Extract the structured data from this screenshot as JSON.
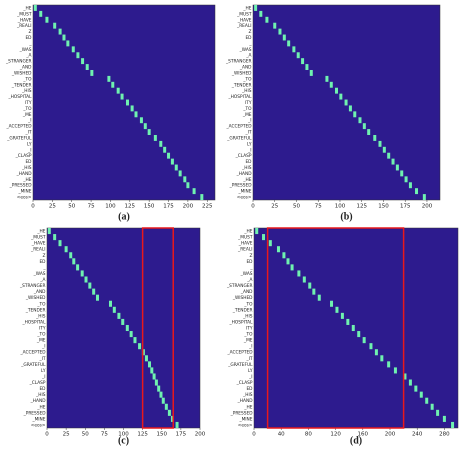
{
  "chart_data": [
    {
      "type": "heatmap",
      "caption": "(a)",
      "background": "#2d1b8e",
      "color": "#6ff2b0",
      "categories": [
        "_HE",
        "_MUST",
        "_HAVE",
        "_REALI",
        "Z",
        "ED",
        "_",
        "_WAS",
        "_A",
        "_STRANGER",
        "_AND",
        "_WISHED",
        "_TO",
        "_TENDER",
        "_HIS",
        "_HOSPITAL",
        "ITY",
        "_TO",
        "_ME",
        "_I",
        "_ACCEPTED",
        "_IT",
        "_GRATEFUL",
        "LY",
        "_I",
        "_CLASP",
        "ED",
        "_HIS",
        "_HAND",
        "_HE",
        "_PRESSED",
        "_MINE",
        "<eos>"
      ],
      "values": [
        3,
        10,
        18,
        28,
        35,
        40,
        45,
        52,
        58,
        64,
        70,
        76,
        98,
        103,
        110,
        115,
        122,
        128,
        133,
        140,
        145,
        150,
        158,
        165,
        170,
        175,
        180,
        185,
        190,
        196,
        200,
        208,
        218
      ],
      "xlim": [
        0,
        235
      ],
      "xticks": [
        0,
        25,
        50,
        75,
        100,
        125,
        150,
        175,
        200,
        225
      ]
    },
    {
      "type": "heatmap",
      "caption": "(b)",
      "background": "#2d1b8e",
      "color": "#6ff2b0",
      "categories": [
        "_HE",
        "_MUST",
        "_HAVE",
        "_REALI",
        "Z",
        "ED",
        "_",
        "_WAS",
        "_A",
        "_STRANGER",
        "_AND",
        "_WISHED",
        "_TO",
        "_TENDER",
        "_HIS",
        "_HOSPITAL",
        "ITY",
        "_TO",
        "_ME",
        "_I",
        "_ACCEPTED",
        "_IT",
        "_GRATEFUL",
        "LY",
        "_I",
        "_CLASP",
        "ED",
        "_HIS",
        "_HAND",
        "_HE",
        "_PRESSED",
        "_MINE",
        "<eos>"
      ],
      "values": [
        3,
        9,
        16,
        25,
        31,
        36,
        41,
        47,
        52,
        57,
        62,
        67,
        85,
        90,
        96,
        101,
        107,
        112,
        117,
        123,
        128,
        133,
        140,
        146,
        151,
        156,
        161,
        166,
        171,
        176,
        181,
        188,
        197
      ],
      "xlim": [
        0,
        215
      ],
      "xticks": [
        0,
        25,
        50,
        75,
        100,
        125,
        150,
        175,
        200
      ]
    },
    {
      "type": "heatmap",
      "caption": "(c)",
      "background": "#2d1b8e",
      "color": "#6ff2b0",
      "categories": [
        "_HE",
        "_MUST",
        "_HAVE",
        "_REALI",
        "Z",
        "ED",
        "_",
        "_WAS",
        "_A",
        "_STRANGER",
        "_AND",
        "_WISHED",
        "_TO",
        "_TENDER",
        "_HIS",
        "_HOSPITAL",
        "ITY",
        "_TO",
        "_ME",
        "_I",
        "_ACCEPTED",
        "_IT",
        "_GRATEFUL",
        "LY",
        "_I",
        "_CLASP",
        "ED",
        "_HIS",
        "_HAND",
        "_HE",
        "_PRESSED",
        "_MINE",
        "<eos>"
      ],
      "values": [
        3,
        10,
        17,
        25,
        31,
        35,
        40,
        46,
        51,
        56,
        61,
        66,
        83,
        88,
        94,
        99,
        105,
        110,
        115,
        121,
        126,
        130,
        134,
        137,
        140,
        143,
        146,
        149,
        152,
        156,
        160,
        164,
        170
      ],
      "xlim": [
        0,
        200
      ],
      "xticks": [
        0,
        25,
        50,
        75,
        100,
        125,
        150,
        175,
        200
      ],
      "highlight": [
        125,
        165
      ]
    },
    {
      "type": "heatmap",
      "caption": "(d)",
      "background": "#2d1b8e",
      "color": "#6ff2b0",
      "categories": [
        "_HE",
        "_MUST",
        "_HAVE",
        "_REALI",
        "Z",
        "ED",
        "_",
        "_WAS",
        "_A",
        "_STRANGER",
        "_AND",
        "_WISHED",
        "_TO",
        "_TENDER",
        "_HIS",
        "_HOSPITAL",
        "ITY",
        "_TO",
        "_ME",
        "_I",
        "_ACCEPTED",
        "_IT",
        "_GRATEFUL",
        "LY",
        "_I",
        "_CLASP",
        "ED",
        "_HIS",
        "_HAND",
        "_HE",
        "_PRESSED",
        "_MINE",
        "<eos>"
      ],
      "values": [
        4,
        14,
        24,
        36,
        44,
        50,
        56,
        66,
        74,
        82,
        88,
        96,
        114,
        122,
        130,
        138,
        146,
        154,
        162,
        172,
        180,
        188,
        198,
        208,
        222,
        230,
        238,
        246,
        254,
        262,
        270,
        280,
        292
      ],
      "xlim": [
        0,
        300
      ],
      "xticks": [
        0,
        40,
        80,
        120,
        160,
        200,
        240,
        280
      ],
      "highlight": [
        20,
        220
      ]
    }
  ]
}
